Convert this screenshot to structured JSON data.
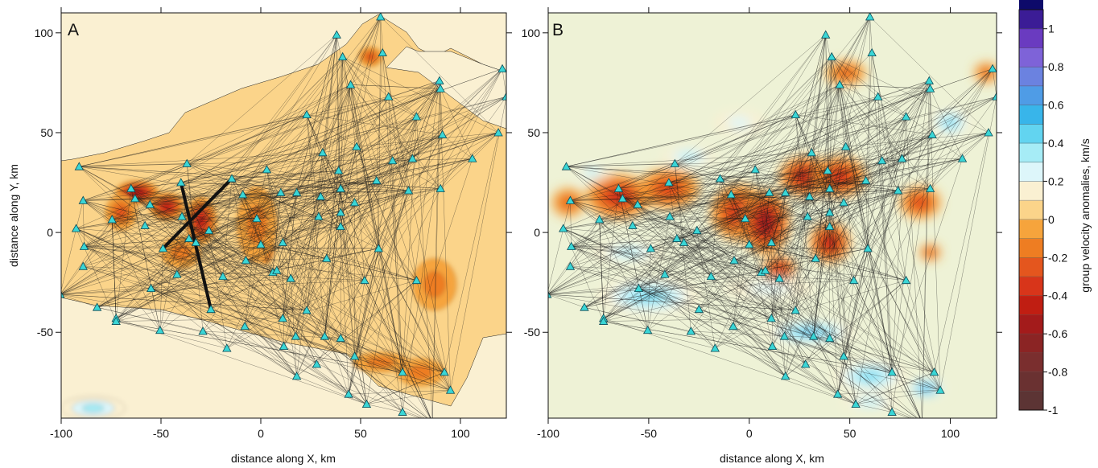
{
  "figure": {
    "panel_a_label": "A",
    "panel_b_label": "B",
    "ylabel": "distance along Y, km",
    "xlabel_a": "distance along X, km",
    "xlabel_b": "distance along X, km",
    "colorbar_label": "group velocity anomalies, km/s"
  },
  "chart_data": {
    "type": "heatmap",
    "xlim": [
      -100,
      123
    ],
    "ylim": [
      -93,
      110
    ],
    "x_ticks": [
      -100,
      -50,
      0,
      50,
      100
    ],
    "y_ticks": [
      -50,
      0,
      50,
      100
    ],
    "colorbar": {
      "range": [
        -1,
        1.1
      ],
      "step": 0.1,
      "tick_labels": [
        "1",
        "0.8",
        "0.6",
        "0.4",
        "0.2",
        "0",
        "-0.2",
        "-0.4",
        "-0.6",
        "-0.8",
        "-1"
      ],
      "colors": {
        "-1.0": "#5c3434",
        "-0.9": "#6a3131",
        "-0.8": "#7a2e2e",
        "-0.7": "#8b2424",
        "-0.6": "#a31b1b",
        "-0.5": "#c01e12",
        "-0.4": "#d8351a",
        "-0.3": "#e4561e",
        "-0.2": "#ee7d22",
        "-0.1": "#f6a43c",
        "0.0": "#fbd48a",
        "0.1": "#faf0d2",
        "0.2": "#ddf6fa",
        "0.3": "#a6ecf6",
        "0.4": "#62d4f0",
        "0.5": "#38b5ea",
        "0.6": "#4f9ce6",
        "0.7": "#6b82e0",
        "0.8": "#7e63d8",
        "0.9": "#6a3bc0",
        "1.0": "#3b1c96",
        "1.1": "#0d0a6a"
      }
    },
    "stations": [
      [
        -100.5,
        -31
      ],
      [
        -91,
        33
      ],
      [
        -92.5,
        2
      ],
      [
        -89,
        16
      ],
      [
        -88.5,
        -7
      ],
      [
        -89,
        -17
      ],
      [
        -82,
        -37.5
      ],
      [
        -74.5,
        6.5
      ],
      [
        -72.5,
        -43
      ],
      [
        -72.5,
        -44.5
      ],
      [
        -65,
        22
      ],
      [
        -63,
        17
      ],
      [
        -58,
        3.5
      ],
      [
        -55.5,
        14
      ],
      [
        -55,
        -28
      ],
      [
        -50.5,
        -49
      ],
      [
        -49,
        -8
      ],
      [
        -42,
        -21
      ],
      [
        -40,
        25
      ],
      [
        -39.5,
        8
      ],
      [
        -37,
        34.5
      ],
      [
        -36,
        -3
      ],
      [
        -32.5,
        -5
      ],
      [
        -29,
        -49.5
      ],
      [
        -26,
        1
      ],
      [
        -25,
        -38.5
      ],
      [
        -19,
        -22
      ],
      [
        -17,
        -58
      ],
      [
        -14.5,
        27
      ],
      [
        -9,
        19
      ],
      [
        -8,
        -47
      ],
      [
        -7.5,
        -14
      ],
      [
        -2,
        7
      ],
      [
        0,
        -6
      ],
      [
        3,
        31.5
      ],
      [
        6,
        -20
      ],
      [
        8,
        -19
      ],
      [
        10,
        20
      ],
      [
        11,
        -5
      ],
      [
        11,
        -43
      ],
      [
        11.5,
        -57
      ],
      [
        15,
        -23
      ],
      [
        17.5,
        -52
      ],
      [
        18,
        20
      ],
      [
        18,
        -72
      ],
      [
        23,
        59
      ],
      [
        23,
        -39
      ],
      [
        28,
        -66
      ],
      [
        29,
        8
      ],
      [
        30,
        18
      ],
      [
        31,
        40
      ],
      [
        32,
        -52
      ],
      [
        33,
        -13
      ],
      [
        38,
        99
      ],
      [
        39,
        31
      ],
      [
        40,
        3
      ],
      [
        40,
        10
      ],
      [
        40,
        22
      ],
      [
        40,
        -53
      ],
      [
        41,
        88
      ],
      [
        44,
        -81
      ],
      [
        45,
        74
      ],
      [
        48,
        43
      ],
      [
        47,
        -62
      ],
      [
        47,
        15
      ],
      [
        52,
        -24
      ],
      [
        53,
        -86
      ],
      [
        58,
        26
      ],
      [
        60,
        108
      ],
      [
        59,
        -8
      ],
      [
        61,
        90
      ],
      [
        64,
        68
      ],
      [
        66,
        36
      ],
      [
        71,
        -70
      ],
      [
        71,
        -90
      ],
      [
        74,
        21
      ],
      [
        76,
        37
      ],
      [
        78,
        58
      ],
      [
        78,
        -24
      ],
      [
        86,
        -95
      ],
      [
        89.5,
        76
      ],
      [
        90,
        72
      ],
      [
        91,
        49
      ],
      [
        90,
        22
      ],
      [
        92,
        -70
      ],
      [
        95,
        -79
      ],
      [
        106,
        37
      ],
      [
        119,
        50
      ],
      [
        121,
        82
      ],
      [
        123,
        68
      ]
    ],
    "thick_paths": [
      [
        [
          -40,
          25
        ],
        [
          -25,
          -38.5
        ]
      ],
      [
        [
          -49,
          -8
        ],
        [
          -14.5,
          27
        ]
      ]
    ],
    "panel_a_anomalies": [
      [
        -62,
        20,
        11,
        6,
        -0.55
      ],
      [
        -47,
        13,
        9,
        7,
        -0.5
      ],
      [
        -30,
        6,
        8,
        12,
        -0.45
      ],
      [
        -70,
        10,
        8,
        9,
        -0.3
      ],
      [
        -40,
        -10,
        10,
        8,
        -0.2
      ],
      [
        2,
        -6,
        5,
        10,
        -0.75
      ],
      [
        -2,
        4,
        10,
        19,
        -0.2
      ],
      [
        87,
        -24,
        5,
        6,
        -0.85
      ],
      [
        87,
        -26,
        11,
        13,
        -0.2
      ],
      [
        55,
        88,
        6,
        5,
        -0.3
      ],
      [
        80,
        -70,
        12,
        7,
        -0.2
      ],
      [
        60,
        -65,
        14,
        5,
        -0.15
      ],
      [
        -84,
        -88,
        16,
        6,
        0.3
      ]
    ],
    "panel_b_anomalies": [
      [
        -65,
        18,
        16,
        11,
        -0.45
      ],
      [
        -40,
        22,
        15,
        10,
        -0.4
      ],
      [
        -5,
        10,
        14,
        14,
        -0.5
      ],
      [
        8,
        5,
        12,
        16,
        -0.65
      ],
      [
        28,
        28,
        13,
        10,
        -0.55
      ],
      [
        45,
        28,
        13,
        10,
        -0.45
      ],
      [
        40,
        -5,
        10,
        10,
        -0.55
      ],
      [
        15,
        -18,
        8,
        6,
        -0.55
      ],
      [
        85,
        15,
        10,
        8,
        -0.4
      ],
      [
        48,
        80,
        10,
        6,
        -0.25
      ],
      [
        118,
        80,
        6,
        5,
        -0.3
      ],
      [
        90,
        -10,
        5,
        4,
        -0.4
      ],
      [
        -90,
        15,
        8,
        7,
        -0.3
      ],
      [
        -50,
        -32,
        25,
        9,
        0.4
      ],
      [
        -60,
        -10,
        17,
        5,
        0.3
      ],
      [
        -30,
        38,
        13,
        5,
        0.3
      ],
      [
        30,
        -50,
        22,
        6,
        0.5
      ],
      [
        60,
        -72,
        18,
        8,
        0.4
      ],
      [
        88,
        -78,
        10,
        5,
        0.6
      ],
      [
        100,
        55,
        10,
        7,
        0.35
      ],
      [
        -78,
        30,
        8,
        4,
        0.3
      ],
      [
        10,
        -28,
        22,
        5,
        0.2
      ],
      [
        -5,
        55,
        12,
        6,
        0.15
      ],
      [
        60,
        -85,
        14,
        4,
        0.3
      ]
    ]
  }
}
